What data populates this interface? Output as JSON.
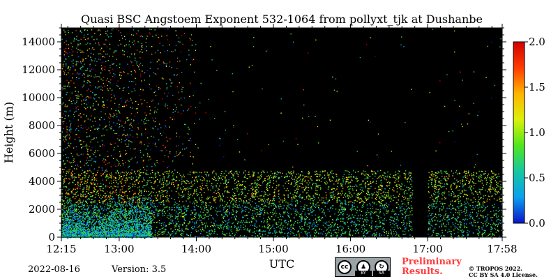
{
  "chart_data": {
    "type": "heatmap",
    "title": "Quasi BSC Angstoem Exponent 532-1064 from pollyxt_tjk at Dushanbe",
    "xlabel": "UTC",
    "ylabel": "Height (m)",
    "x_range": [
      "12:15",
      "17:58"
    ],
    "x_ticks": [
      "12:15",
      "13:00",
      "14:00",
      "15:00",
      "16:00",
      "17:00",
      "17:58"
    ],
    "y_range": [
      0,
      15000
    ],
    "y_ticks": [
      0,
      2000,
      4000,
      6000,
      8000,
      10000,
      12000,
      14000
    ],
    "colorbar": {
      "range": [
        0.0,
        2.0
      ],
      "ticks": [
        "0.0",
        "0.5",
        "1.0",
        "1.5",
        "2.0"
      ],
      "colors": [
        "#0a14c8",
        "#0aa0f0",
        "#14c8a0",
        "#50e61e",
        "#dcf00a",
        "#ffb400",
        "#ff3c00",
        "#d20000"
      ]
    },
    "background": "#000000",
    "data_gap": [
      "16:48",
      "17:00"
    ],
    "features": {
      "boundary_layer_top_m": 4800,
      "near_surface_layer_top_m": 1200,
      "sparse_upper_signal_until": "14:00"
    }
  },
  "footer": {
    "date": "2022-08-16",
    "version": "Version: 3.5",
    "license_badge": {
      "by": "BY",
      "sa": "SA",
      "cc": "cc"
    },
    "preliminary_line1": "Preliminary",
    "preliminary_line2": "Results.",
    "copyright_line1": "© TROPOS 2022.",
    "copyright_line2": "CC BY SA 4.0 License."
  }
}
